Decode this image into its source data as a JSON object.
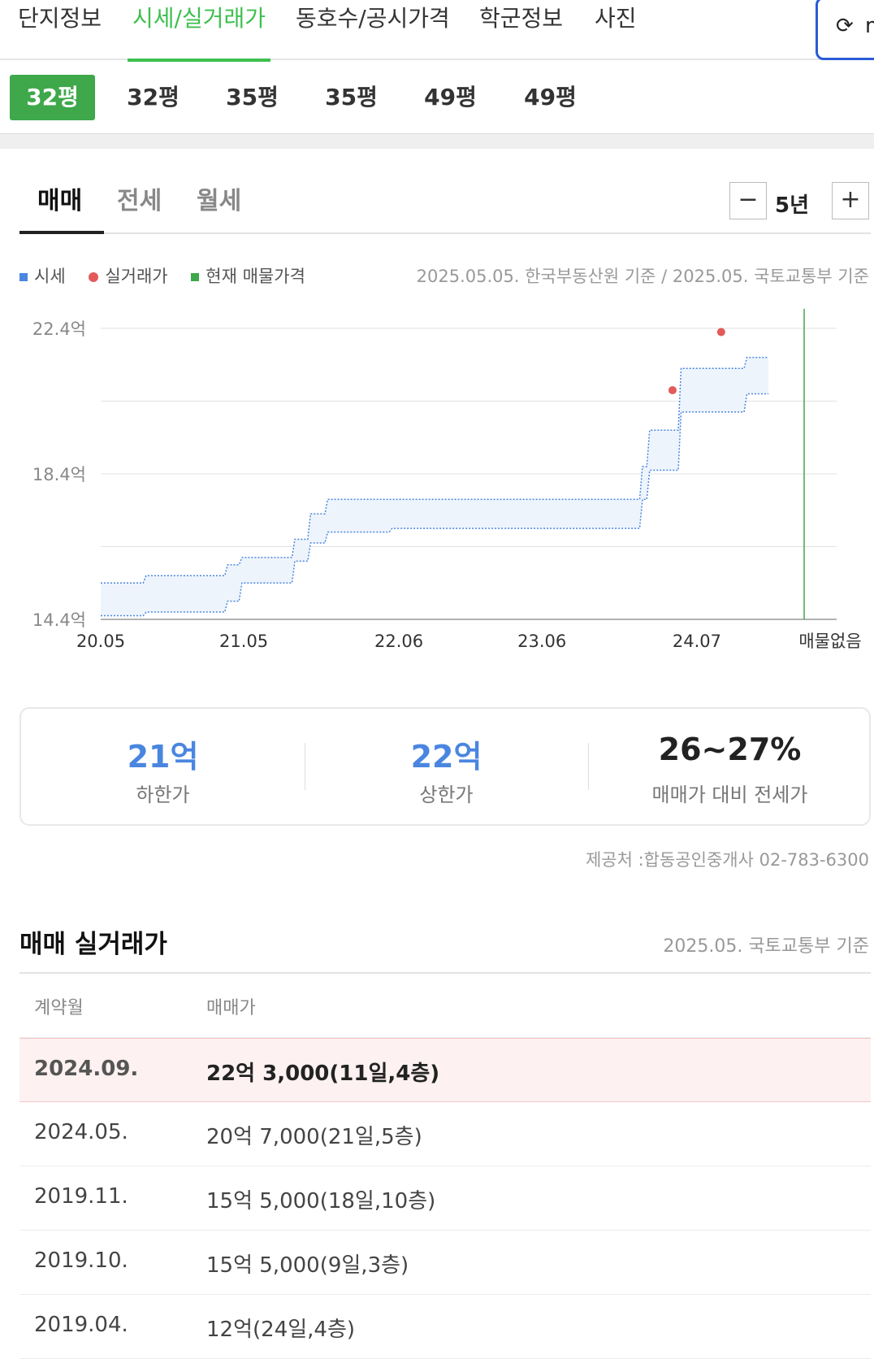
{
  "top_tabs": [
    "단지정보",
    "시세/실거래가",
    "동호수/공시가격",
    "학군정보",
    "사진"
  ],
  "refresh": {
    "icon": "refresh-icon",
    "label": "m"
  },
  "pyeong_tabs": [
    "32평",
    "32평",
    "35평",
    "35평",
    "49평",
    "49평"
  ],
  "deal_tabs": [
    "매매",
    "전세",
    "월세"
  ],
  "period": {
    "minus": "−",
    "value": "5년",
    "plus": "+"
  },
  "legend": {
    "market": "시세",
    "actual": "실거래가",
    "listing": "현재 매물가격"
  },
  "basis_text": "2025.05.05. 한국부동산원 기준 / 2025.05. 국토교통부 기준",
  "colors": {
    "accent": "#3ec04f",
    "market": "#4a86e0",
    "actual": "#e35a5a",
    "listing": "#3ea84a"
  },
  "chart_data": {
    "type": "area",
    "y_unit": "억",
    "y_ticks": [
      "22.4억",
      "18.4억",
      "14.4억"
    ],
    "y_tick_values": [
      22.4,
      18.4,
      14.4
    ],
    "ylim": [
      14.4,
      22.4
    ],
    "x_ticks": [
      "20.05",
      "21.05",
      "22.06",
      "23.06",
      "24.07"
    ],
    "x_tick_values": [
      2020.333,
      2021.333,
      2022.417,
      2023.417,
      2024.5
    ],
    "xlim": [
      2020.333,
      2025.25
    ],
    "grid": true,
    "listing_label": "매물없음",
    "listing_x": 2025.25,
    "market_band": {
      "x": [
        2020.333,
        2020.63,
        2020.65,
        2021.2,
        2021.22,
        2021.3,
        2021.32,
        2021.67,
        2021.69,
        2021.78,
        2021.8,
        2021.9,
        2021.92,
        2022.35,
        2022.37,
        2024.1,
        2024.12,
        2024.15,
        2024.17,
        2024.37,
        2024.39,
        2024.83,
        2024.85,
        2025.0
      ],
      "upper": [
        15.4,
        15.4,
        15.6,
        15.6,
        15.9,
        15.9,
        16.1,
        16.1,
        16.6,
        16.6,
        17.3,
        17.3,
        17.7,
        17.7,
        17.7,
        17.7,
        18.6,
        18.6,
        19.6,
        19.6,
        21.3,
        21.3,
        21.6,
        21.6
      ],
      "lower": [
        14.5,
        14.5,
        14.6,
        14.6,
        14.9,
        14.9,
        15.4,
        15.4,
        16.0,
        16.0,
        16.5,
        16.5,
        16.8,
        16.8,
        16.9,
        16.9,
        17.7,
        17.7,
        18.5,
        18.5,
        20.1,
        20.1,
        20.6,
        20.6
      ]
    },
    "actual_points": [
      {
        "x": 2024.33,
        "y": 20.7
      },
      {
        "x": 2024.67,
        "y": 22.3
      }
    ]
  },
  "summary": [
    {
      "value": "21억",
      "label": "하한가",
      "color": "#4a86e0"
    },
    {
      "value": "22억",
      "label": "상한가",
      "color": "#4a86e0"
    },
    {
      "value": "26~27%",
      "label": "매매가 대비 전세가",
      "color": "#222"
    }
  ],
  "provider": "제공처 :합동공인중개사 02-783-6300",
  "transactions": {
    "title": "매매 실거래가",
    "basis": "2025.05. 국토교통부 기준",
    "headers": [
      "계약월",
      "매매가"
    ],
    "rows": [
      {
        "month": "2024.09.",
        "price": "22억 3,000(11일,4층)"
      },
      {
        "month": "2024.05.",
        "price": "20억 7,000(21일,5층)"
      },
      {
        "month": "2019.11.",
        "price": "15억 5,000(18일,10층)"
      },
      {
        "month": "2019.10.",
        "price": "15억 5,000(9일,3층)"
      },
      {
        "month": "2019.04.",
        "price": "12억(24일,4층)"
      }
    ]
  }
}
